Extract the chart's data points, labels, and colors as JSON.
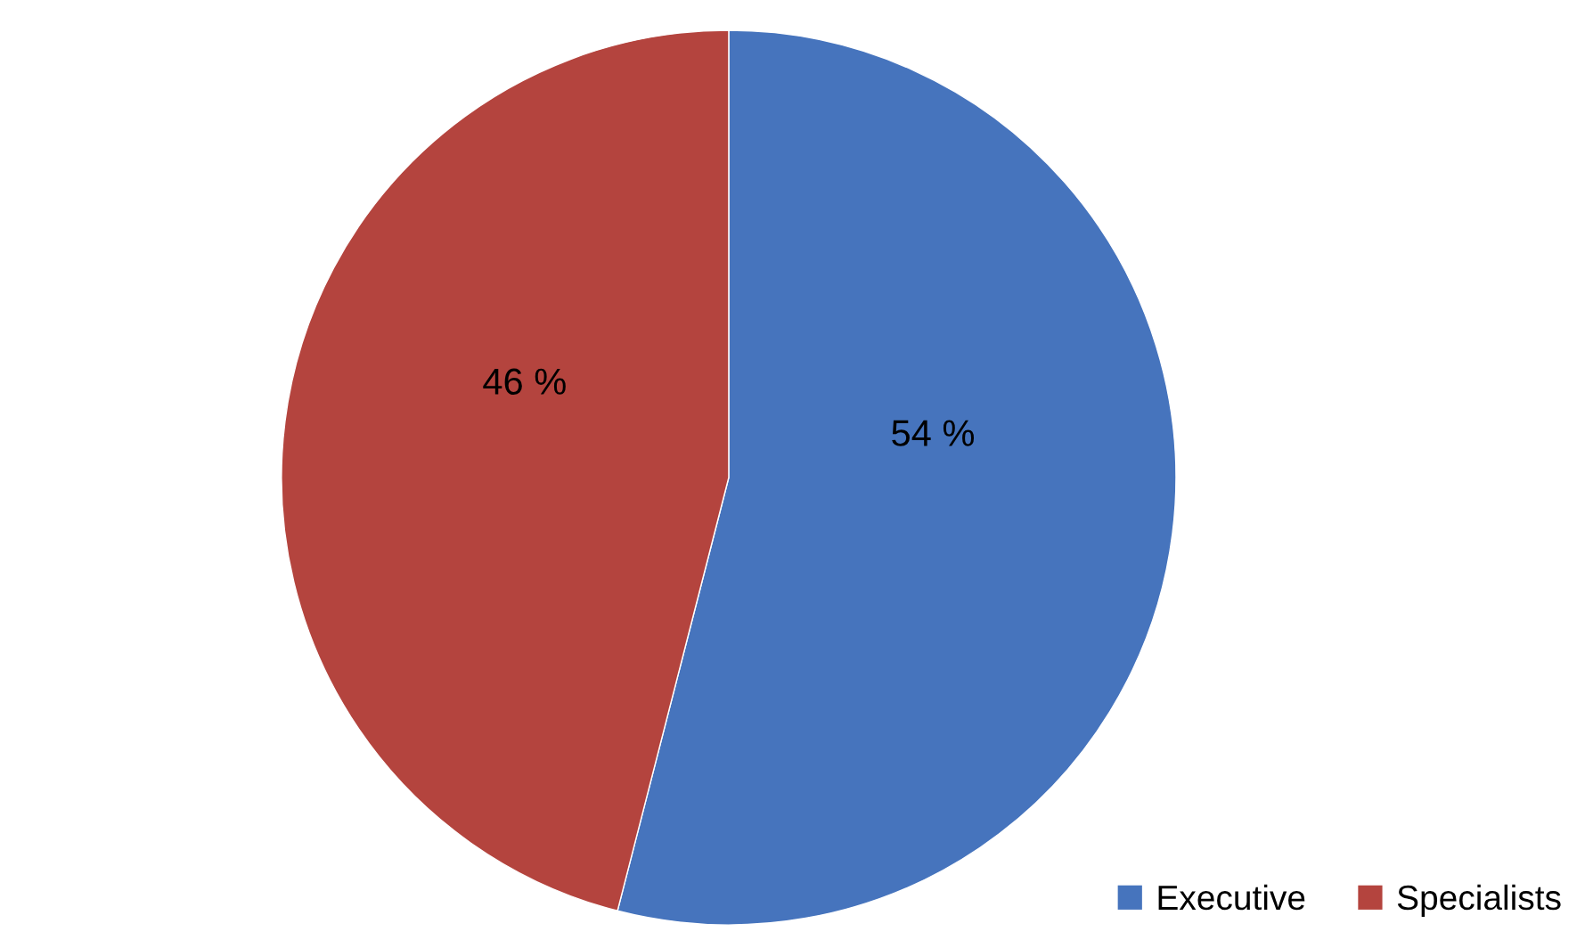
{
  "chart_data": {
    "type": "pie",
    "categories": [
      "Executive",
      "Specialists"
    ],
    "values": [
      54,
      46
    ],
    "colors": [
      "#4674bd",
      "#b4443e"
    ],
    "value_labels": [
      "54 %",
      "46 %"
    ],
    "legend": "bottom right"
  }
}
